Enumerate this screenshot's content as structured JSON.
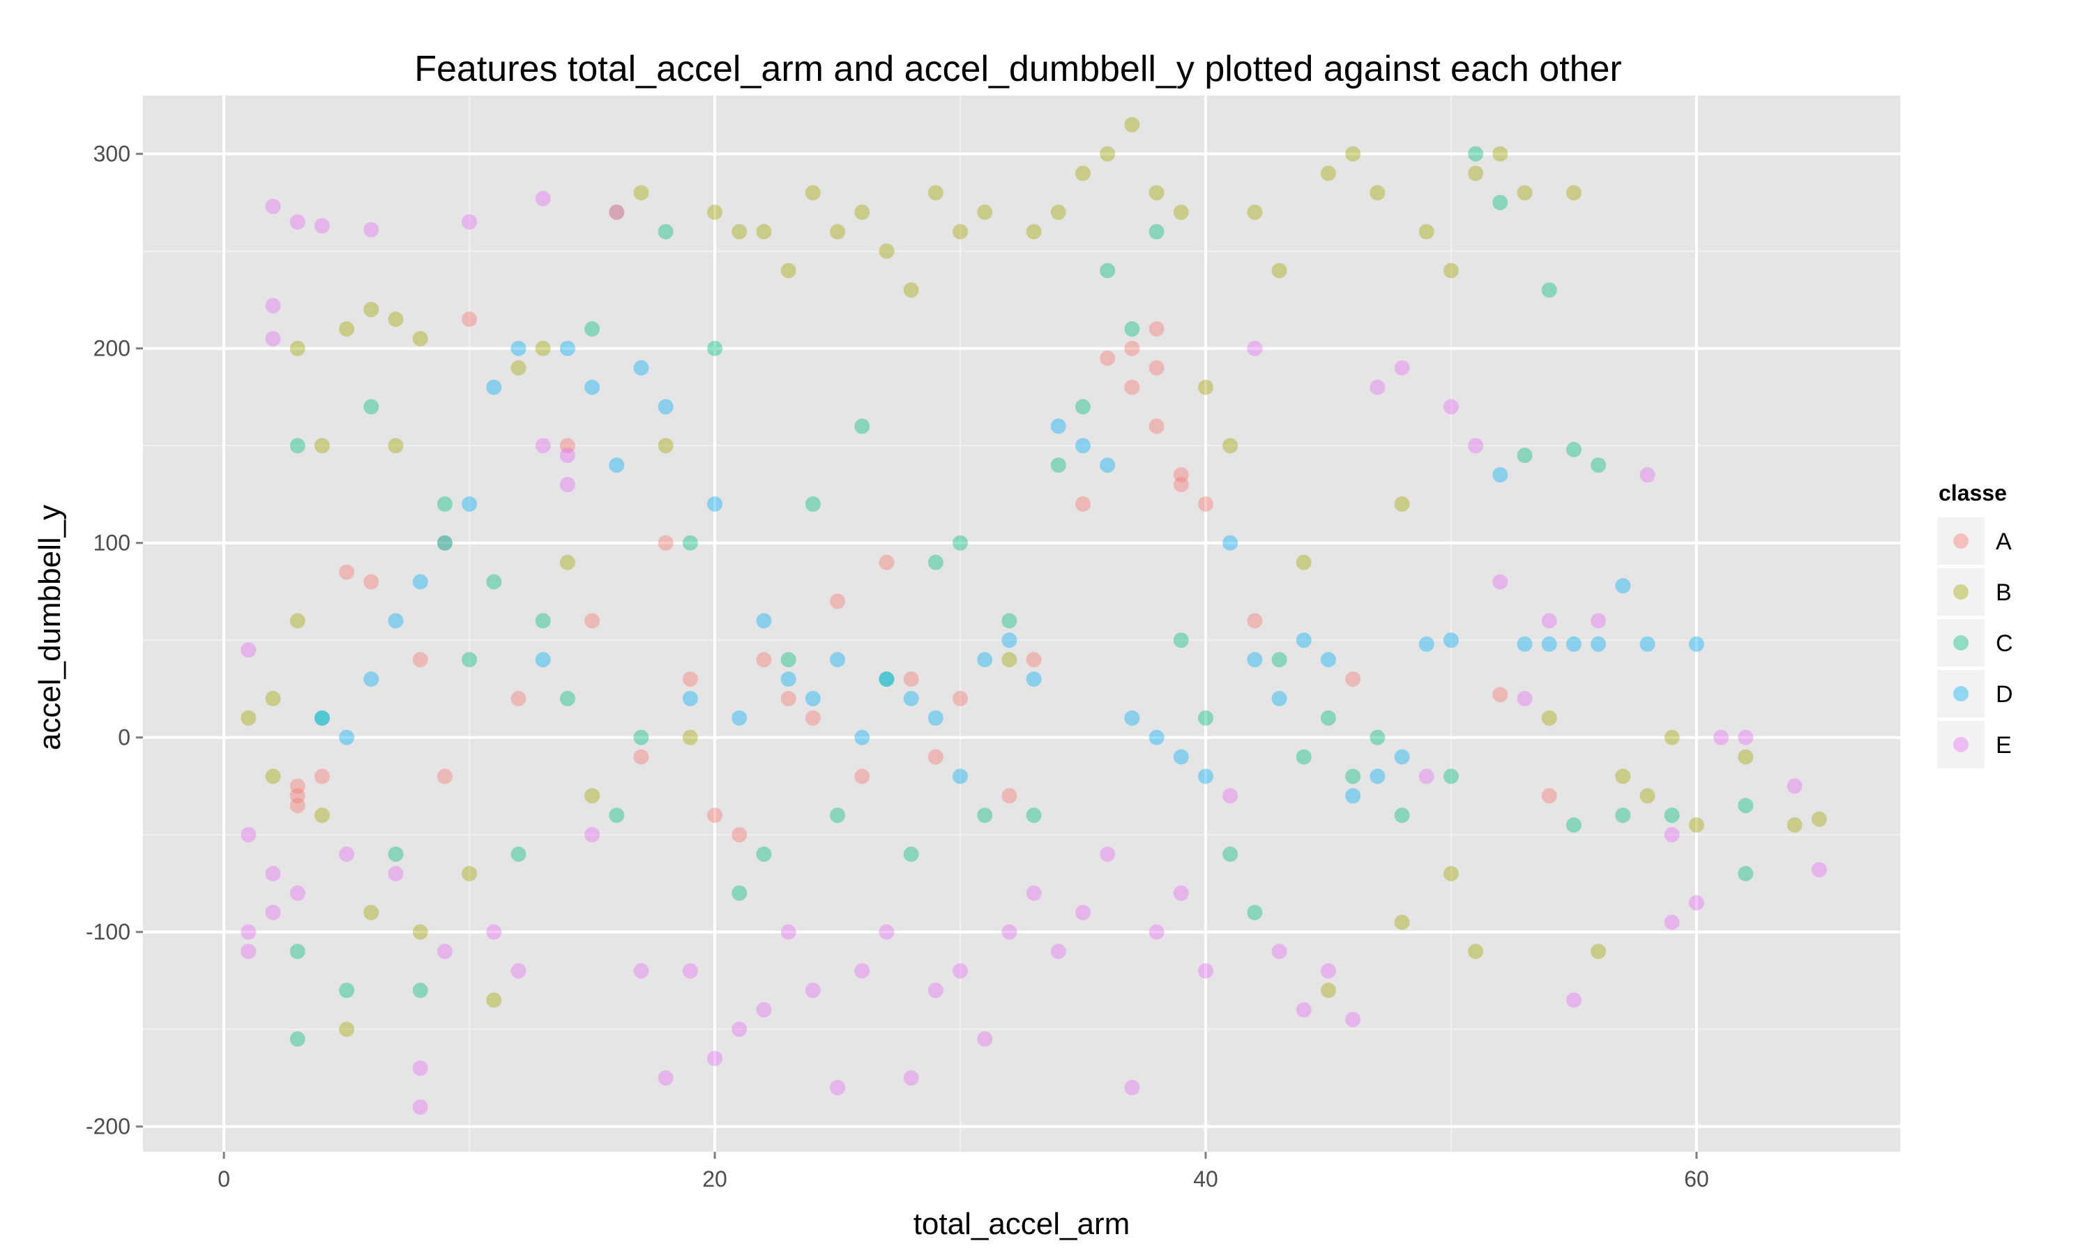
{
  "chart_data": {
    "type": "scatter",
    "title": "Features  total_accel_arm  and  accel_dumbbell_y  plotted against each other",
    "xlabel": "total_accel_arm",
    "ylabel": "accel_dumbbell_y",
    "xlim": [
      -3.3,
      68.3
    ],
    "ylim": [
      -213,
      330
    ],
    "x_ticks": [
      0,
      20,
      40,
      60
    ],
    "x_tick_labels": [
      "0",
      "20",
      "40",
      "60"
    ],
    "y_ticks": [
      -200,
      -100,
      0,
      100,
      200,
      300
    ],
    "y_tick_labels": [
      "-200",
      "-100",
      "0",
      "100",
      "200",
      "300"
    ],
    "grid": true,
    "legend": {
      "title": "classe",
      "position": "right",
      "entries": [
        "A",
        "B",
        "C",
        "D",
        "E"
      ]
    },
    "point_alpha": 0.4,
    "series": [
      {
        "name": "A",
        "color": "#F8766D",
        "points": [
          [
            3,
            -30
          ],
          [
            3,
            -25
          ],
          [
            3,
            -35
          ],
          [
            4,
            -20
          ],
          [
            5,
            85
          ],
          [
            6,
            80
          ],
          [
            8,
            40
          ],
          [
            9,
            -20
          ],
          [
            10,
            215
          ],
          [
            12,
            20
          ],
          [
            14,
            150
          ],
          [
            15,
            60
          ],
          [
            17,
            -10
          ],
          [
            18,
            100
          ],
          [
            19,
            30
          ],
          [
            20,
            -40
          ],
          [
            21,
            -50
          ],
          [
            22,
            40
          ],
          [
            23,
            20
          ],
          [
            24,
            10
          ],
          [
            25,
            70
          ],
          [
            26,
            -20
          ],
          [
            27,
            90
          ],
          [
            28,
            30
          ],
          [
            29,
            -10
          ],
          [
            30,
            20
          ],
          [
            32,
            -30
          ],
          [
            33,
            40
          ],
          [
            35,
            120
          ],
          [
            36,
            195
          ],
          [
            37,
            200
          ],
          [
            37,
            180
          ],
          [
            38,
            210
          ],
          [
            38,
            190
          ],
          [
            38,
            160
          ],
          [
            39,
            135
          ],
          [
            39,
            130
          ],
          [
            40,
            120
          ],
          [
            42,
            60
          ],
          [
            46,
            30
          ],
          [
            52,
            22
          ],
          [
            54,
            -30
          ]
        ]
      },
      {
        "name": "B",
        "color": "#A3A500",
        "points": [
          [
            1,
            10
          ],
          [
            2,
            20
          ],
          [
            2,
            -20
          ],
          [
            3,
            200
          ],
          [
            3,
            60
          ],
          [
            4,
            150
          ],
          [
            4,
            -40
          ],
          [
            5,
            210
          ],
          [
            5,
            -150
          ],
          [
            6,
            220
          ],
          [
            6,
            -90
          ],
          [
            7,
            215
          ],
          [
            7,
            150
          ],
          [
            8,
            205
          ],
          [
            8,
            -100
          ],
          [
            9,
            100
          ],
          [
            10,
            -70
          ],
          [
            11,
            -135
          ],
          [
            12,
            190
          ],
          [
            13,
            200
          ],
          [
            14,
            90
          ],
          [
            15,
            -30
          ],
          [
            16,
            270
          ],
          [
            17,
            280
          ],
          [
            18,
            150
          ],
          [
            19,
            0
          ],
          [
            20,
            270
          ],
          [
            21,
            260
          ],
          [
            22,
            260
          ],
          [
            23,
            240
          ],
          [
            24,
            280
          ],
          [
            25,
            260
          ],
          [
            26,
            270
          ],
          [
            27,
            250
          ],
          [
            28,
            230
          ],
          [
            29,
            280
          ],
          [
            30,
            260
          ],
          [
            31,
            270
          ],
          [
            32,
            40
          ],
          [
            33,
            260
          ],
          [
            34,
            270
          ],
          [
            35,
            290
          ],
          [
            36,
            300
          ],
          [
            37,
            315
          ],
          [
            38,
            280
          ],
          [
            39,
            270
          ],
          [
            40,
            180
          ],
          [
            41,
            150
          ],
          [
            42,
            270
          ],
          [
            43,
            240
          ],
          [
            44,
            90
          ],
          [
            45,
            290
          ],
          [
            46,
            300
          ],
          [
            47,
            280
          ],
          [
            48,
            120
          ],
          [
            49,
            260
          ],
          [
            50,
            240
          ],
          [
            51,
            290
          ],
          [
            52,
            300
          ],
          [
            53,
            280
          ],
          [
            54,
            10
          ],
          [
            55,
            280
          ],
          [
            56,
            -110
          ],
          [
            57,
            -20
          ],
          [
            58,
            -30
          ],
          [
            59,
            0
          ],
          [
            60,
            -45
          ],
          [
            62,
            -10
          ],
          [
            64,
            -45
          ],
          [
            65,
            -42
          ],
          [
            48,
            -95
          ],
          [
            50,
            -70
          ],
          [
            51,
            -110
          ],
          [
            45,
            -130
          ]
        ]
      },
      {
        "name": "C",
        "color": "#00BF7D",
        "points": [
          [
            3,
            150
          ],
          [
            3,
            -155
          ],
          [
            3,
            -110
          ],
          [
            4,
            10
          ],
          [
            5,
            -130
          ],
          [
            6,
            170
          ],
          [
            7,
            -60
          ],
          [
            8,
            -130
          ],
          [
            9,
            120
          ],
          [
            10,
            40
          ],
          [
            11,
            80
          ],
          [
            12,
            -60
          ],
          [
            13,
            60
          ],
          [
            14,
            20
          ],
          [
            15,
            210
          ],
          [
            16,
            -40
          ],
          [
            17,
            0
          ],
          [
            18,
            260
          ],
          [
            19,
            100
          ],
          [
            20,
            200
          ],
          [
            21,
            -80
          ],
          [
            22,
            -60
          ],
          [
            23,
            40
          ],
          [
            24,
            120
          ],
          [
            25,
            -40
          ],
          [
            26,
            160
          ],
          [
            27,
            30
          ],
          [
            28,
            -60
          ],
          [
            29,
            90
          ],
          [
            30,
            100
          ],
          [
            31,
            -40
          ],
          [
            32,
            60
          ],
          [
            33,
            -40
          ],
          [
            34,
            140
          ],
          [
            35,
            170
          ],
          [
            36,
            240
          ],
          [
            37,
            210
          ],
          [
            38,
            260
          ],
          [
            39,
            50
          ],
          [
            40,
            10
          ],
          [
            41,
            -60
          ],
          [
            42,
            -90
          ],
          [
            43,
            40
          ],
          [
            44,
            -10
          ],
          [
            45,
            10
          ],
          [
            46,
            -20
          ],
          [
            47,
            0
          ],
          [
            48,
            -40
          ],
          [
            50,
            -20
          ],
          [
            51,
            300
          ],
          [
            52,
            275
          ],
          [
            53,
            145
          ],
          [
            54,
            230
          ],
          [
            55,
            148
          ],
          [
            56,
            140
          ],
          [
            59,
            -40
          ],
          [
            62,
            -70
          ],
          [
            62,
            -35
          ],
          [
            57,
            -40
          ],
          [
            55,
            -45
          ]
        ]
      },
      {
        "name": "D",
        "color": "#00B0F6",
        "points": [
          [
            4,
            10
          ],
          [
            5,
            0
          ],
          [
            6,
            30
          ],
          [
            7,
            60
          ],
          [
            8,
            80
          ],
          [
            9,
            100
          ],
          [
            10,
            120
          ],
          [
            11,
            180
          ],
          [
            12,
            200
          ],
          [
            13,
            40
          ],
          [
            14,
            200
          ],
          [
            15,
            180
          ],
          [
            16,
            140
          ],
          [
            17,
            190
          ],
          [
            18,
            170
          ],
          [
            19,
            20
          ],
          [
            20,
            120
          ],
          [
            21,
            10
          ],
          [
            22,
            60
          ],
          [
            23,
            30
          ],
          [
            24,
            20
          ],
          [
            25,
            40
          ],
          [
            26,
            0
          ],
          [
            27,
            30
          ],
          [
            28,
            20
          ],
          [
            29,
            10
          ],
          [
            30,
            -20
          ],
          [
            31,
            40
          ],
          [
            32,
            50
          ],
          [
            33,
            30
          ],
          [
            34,
            160
          ],
          [
            35,
            150
          ],
          [
            36,
            140
          ],
          [
            37,
            10
          ],
          [
            38,
            0
          ],
          [
            39,
            -10
          ],
          [
            40,
            -20
          ],
          [
            41,
            100
          ],
          [
            42,
            40
          ],
          [
            43,
            20
          ],
          [
            44,
            50
          ],
          [
            45,
            40
          ],
          [
            46,
            -30
          ],
          [
            47,
            -20
          ],
          [
            48,
            -10
          ],
          [
            49,
            48
          ],
          [
            50,
            50
          ],
          [
            52,
            135
          ],
          [
            53,
            48
          ],
          [
            54,
            48
          ],
          [
            55,
            48
          ],
          [
            56,
            48
          ],
          [
            57,
            78
          ],
          [
            58,
            48
          ],
          [
            60,
            48
          ]
        ]
      },
      {
        "name": "E",
        "color": "#E76BF3",
        "points": [
          [
            1,
            45
          ],
          [
            1,
            -100
          ],
          [
            1,
            -110
          ],
          [
            1,
            -50
          ],
          [
            2,
            273
          ],
          [
            2,
            222
          ],
          [
            2,
            205
          ],
          [
            2,
            -70
          ],
          [
            2,
            -90
          ],
          [
            3,
            265
          ],
          [
            3,
            -80
          ],
          [
            4,
            263
          ],
          [
            5,
            -60
          ],
          [
            6,
            261
          ],
          [
            7,
            -70
          ],
          [
            8,
            -190
          ],
          [
            8,
            -170
          ],
          [
            9,
            -110
          ],
          [
            10,
            265
          ],
          [
            11,
            -100
          ],
          [
            12,
            -120
          ],
          [
            13,
            277
          ],
          [
            13,
            150
          ],
          [
            14,
            145
          ],
          [
            14,
            130
          ],
          [
            15,
            -50
          ],
          [
            16,
            270
          ],
          [
            17,
            -120
          ],
          [
            18,
            -175
          ],
          [
            19,
            -120
          ],
          [
            20,
            -165
          ],
          [
            21,
            -150
          ],
          [
            22,
            -140
          ],
          [
            23,
            -100
          ],
          [
            24,
            -130
          ],
          [
            25,
            -180
          ],
          [
            26,
            -120
          ],
          [
            27,
            -100
          ],
          [
            28,
            -175
          ],
          [
            29,
            -130
          ],
          [
            30,
            -120
          ],
          [
            31,
            -155
          ],
          [
            32,
            -100
          ],
          [
            33,
            -80
          ],
          [
            34,
            -110
          ],
          [
            35,
            -90
          ],
          [
            36,
            -60
          ],
          [
            37,
            -180
          ],
          [
            38,
            -100
          ],
          [
            39,
            -80
          ],
          [
            40,
            -120
          ],
          [
            41,
            -30
          ],
          [
            42,
            200
          ],
          [
            43,
            -110
          ],
          [
            44,
            -140
          ],
          [
            45,
            -120
          ],
          [
            46,
            -145
          ],
          [
            47,
            180
          ],
          [
            48,
            190
          ],
          [
            49,
            -20
          ],
          [
            50,
            170
          ],
          [
            51,
            150
          ],
          [
            52,
            80
          ],
          [
            53,
            20
          ],
          [
            54,
            60
          ],
          [
            55,
            -135
          ],
          [
            56,
            60
          ],
          [
            58,
            135
          ],
          [
            59,
            -95
          ],
          [
            59,
            -50
          ],
          [
            60,
            -85
          ],
          [
            61,
            0
          ],
          [
            62,
            0
          ],
          [
            64,
            -25
          ],
          [
            65,
            -68
          ]
        ]
      }
    ]
  }
}
